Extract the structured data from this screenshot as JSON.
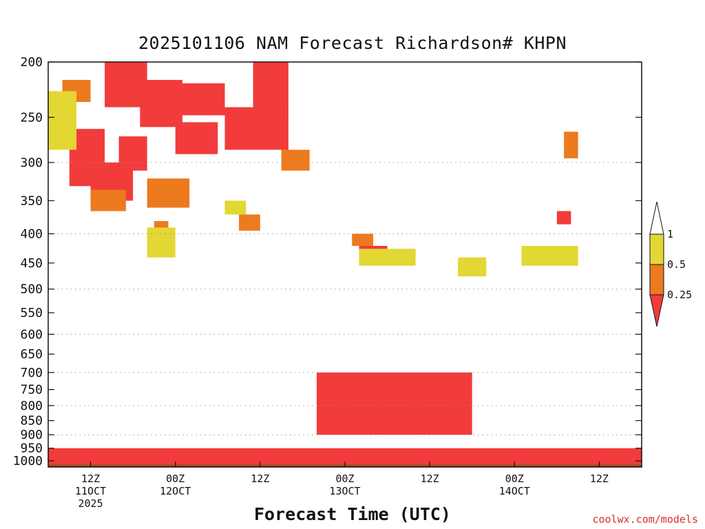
{
  "chart_data": {
    "type": "heatmap",
    "title": "2025101106 NAM Forecast Richardson# KHPN",
    "xlabel": "Forecast Time (UTC)",
    "ylabel": "",
    "y_ticks": [
      200,
      250,
      300,
      350,
      400,
      450,
      500,
      550,
      600,
      650,
      700,
      750,
      800,
      850,
      900,
      950,
      1000
    ],
    "y_gridlines": [
      300,
      400,
      500,
      600,
      700,
      800,
      900
    ],
    "y_range_hpa": [
      200,
      1025
    ],
    "x_range_hours": [
      0,
      84
    ],
    "x_ticks": [
      {
        "hour": 6,
        "lines": [
          "12Z",
          "11OCT",
          "2025"
        ]
      },
      {
        "hour": 18,
        "lines": [
          "00Z",
          "12OCT"
        ]
      },
      {
        "hour": 30,
        "lines": [
          "12Z"
        ]
      },
      {
        "hour": 42,
        "lines": [
          "00Z",
          "13OCT"
        ]
      },
      {
        "hour": 54,
        "lines": [
          "12Z"
        ]
      },
      {
        "hour": 66,
        "lines": [
          "00Z",
          "14OCT"
        ]
      },
      {
        "hour": 78,
        "lines": [
          "12Z"
        ]
      }
    ],
    "colorbar": {
      "levels": [
        0.25,
        0.5,
        1
      ],
      "labels": [
        "0.25",
        "0.5",
        "1"
      ],
      "colors": {
        "lt_0.25": "#f23b3b",
        "0.25_0.5": "#ec7a1f",
        "0.5_1": "#e2d733",
        "ge_1": "#ffffff"
      }
    },
    "ground_color": "#9a4a1e",
    "series": [
      {
        "name": "Ri < 0.25 (upper)",
        "category": "red",
        "regions": [
          {
            "hours": [
              3,
              8
            ],
            "hpa": [
              262,
              330
            ]
          },
          {
            "hours": [
              6,
              12
            ],
            "hpa": [
              300,
              350
            ]
          },
          {
            "hours": [
              8,
              14
            ],
            "hpa": [
              200,
              240
            ]
          },
          {
            "hours": [
              10,
              14
            ],
            "hpa": [
              270,
              310
            ]
          },
          {
            "hours": [
              13,
              19
            ],
            "hpa": [
              215,
              260
            ]
          },
          {
            "hours": [
              16,
              25
            ],
            "hpa": [
              218,
              248
            ]
          },
          {
            "hours": [
              18,
              24
            ],
            "hpa": [
              255,
              290
            ]
          },
          {
            "hours": [
              25,
              34
            ],
            "hpa": [
              240,
              285
            ]
          },
          {
            "hours": [
              29,
              34
            ],
            "hpa": [
              200,
              250
            ]
          },
          {
            "hours": [
              44,
              48
            ],
            "hpa": [
              420,
              450
            ]
          },
          {
            "hours": [
              72,
              74
            ],
            "hpa": [
              365,
              385
            ]
          }
        ]
      },
      {
        "name": "0.25 <= Ri < 0.5 (upper)",
        "category": "orange",
        "regions": [
          {
            "hours": [
              0,
              3
            ],
            "hpa": [
              240,
              280
            ]
          },
          {
            "hours": [
              2,
              6
            ],
            "hpa": [
              215,
              235
            ]
          },
          {
            "hours": [
              6,
              11
            ],
            "hpa": [
              335,
              365
            ]
          },
          {
            "hours": [
              14,
              20
            ],
            "hpa": [
              320,
              360
            ]
          },
          {
            "hours": [
              15,
              17
            ],
            "hpa": [
              380,
              405
            ]
          },
          {
            "hours": [
              27,
              30
            ],
            "hpa": [
              370,
              395
            ]
          },
          {
            "hours": [
              33,
              37
            ],
            "hpa": [
              285,
              310
            ]
          },
          {
            "hours": [
              43,
              46
            ],
            "hpa": [
              400,
              420
            ]
          },
          {
            "hours": [
              73,
              75
            ],
            "hpa": [
              265,
              295
            ]
          }
        ]
      },
      {
        "name": "0.5 <= Ri < 1 (upper)",
        "category": "yellow",
        "regions": [
          {
            "hours": [
              0,
              4
            ],
            "hpa": [
              225,
              285
            ]
          },
          {
            "hours": [
              14,
              18
            ],
            "hpa": [
              390,
              440
            ]
          },
          {
            "hours": [
              25,
              28
            ],
            "hpa": [
              350,
              370
            ]
          },
          {
            "hours": [
              44,
              52
            ],
            "hpa": [
              425,
              455
            ]
          },
          {
            "hours": [
              58,
              62
            ],
            "hpa": [
              440,
              475
            ]
          },
          {
            "hours": [
              67,
              75
            ],
            "hpa": [
              420,
              455
            ]
          }
        ]
      },
      {
        "name": "Ri < 0.25 (boundary layer)",
        "category": "red",
        "regions": [
          {
            "hours": [
              0,
              84
            ],
            "hpa": [
              950,
              1015
            ]
          },
          {
            "hours": [
              38,
              60
            ],
            "hpa": [
              700,
              900
            ]
          }
        ]
      }
    ]
  },
  "credit": "coolwx.com/models"
}
